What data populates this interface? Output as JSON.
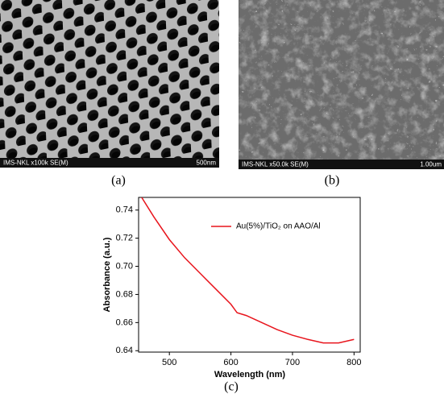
{
  "panels": [
    {
      "label": "(a)",
      "info": "IMS-NKL x100k SE(M)",
      "scale": "500nm"
    },
    {
      "label": "(b)",
      "info": "IMS-NKL x50.0k SE(M)",
      "scale": "1.00um"
    },
    {
      "label": "(c)"
    }
  ],
  "chart_data": {
    "type": "line",
    "x_label": "Wavelength (nm)",
    "y_label": "Absorbance (a.u.)",
    "x": [
      455,
      475,
      500,
      525,
      550,
      575,
      600,
      610,
      625,
      650,
      675,
      700,
      725,
      750,
      775,
      800
    ],
    "series": [
      {
        "name": "Au(5%)/TiO₂ on AAO/Al",
        "color": "#e8141c",
        "values": [
          0.749,
          0.735,
          0.719,
          0.706,
          0.695,
          0.684,
          0.673,
          0.667,
          0.665,
          0.66,
          0.655,
          0.651,
          0.648,
          0.6455,
          0.6455,
          0.648
        ]
      }
    ],
    "xlim": [
      450,
      810
    ],
    "ylim": [
      0.639,
      0.749
    ],
    "xticks": [
      500,
      600,
      700,
      800
    ],
    "yticks": [
      0.64,
      0.66,
      0.68,
      {
        "value": 0.7,
        "label": "0.70"
      },
      0.72,
      0.74
    ],
    "legend": "top-right"
  }
}
